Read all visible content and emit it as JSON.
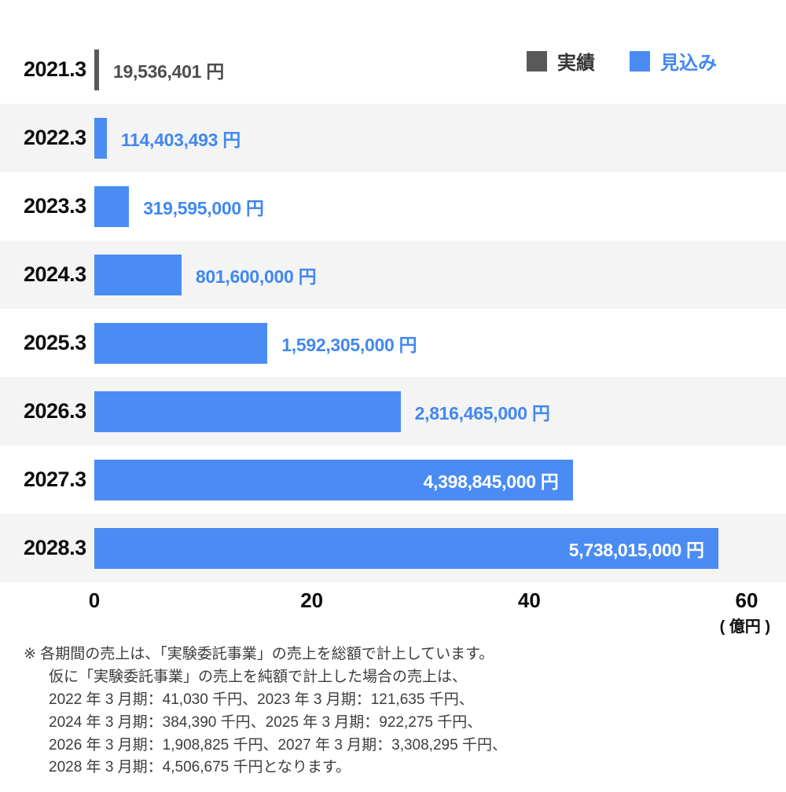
{
  "legend": {
    "items": [
      {
        "label": "実績",
        "color": "#595959",
        "text_color": "#333333"
      },
      {
        "label": "見込み",
        "color": "#4a8cf3",
        "text_color": "#4188f1"
      }
    ]
  },
  "colors": {
    "actual_bar": "#595959",
    "forecast_bar": "#4a8cf3",
    "actual_label_text": "#4d4d4d",
    "forecast_label_text": "#4188f1",
    "inside_label_text": "#ffffff",
    "row_stripe": "#f4f4f4"
  },
  "chart_data": {
    "type": "bar",
    "orientation": "horizontal",
    "title": "",
    "xlabel": "",
    "ylabel": "",
    "xlim": [
      0,
      60
    ],
    "x_ticks": [
      "0",
      "20",
      "40",
      "60"
    ],
    "axis_unit": "( 億円 )",
    "yen_per_axis_unit": 100000000,
    "grid": false,
    "legend_position": "top-right",
    "rows": [
      {
        "year": "2021.3",
        "value_yen": 19536401,
        "label": "19,536,401 円",
        "series": "actual",
        "label_position": "outside"
      },
      {
        "year": "2022.3",
        "value_yen": 114403493,
        "label": "114,403,493 円",
        "series": "forecast",
        "label_position": "outside"
      },
      {
        "year": "2023.3",
        "value_yen": 319595000,
        "label": "319,595,000 円",
        "series": "forecast",
        "label_position": "outside"
      },
      {
        "year": "2024.3",
        "value_yen": 801600000,
        "label": "801,600,000 円",
        "series": "forecast",
        "label_position": "outside"
      },
      {
        "year": "2025.3",
        "value_yen": 1592305000,
        "label": "1,592,305,000 円",
        "series": "forecast",
        "label_position": "outside"
      },
      {
        "year": "2026.3",
        "value_yen": 2816465000,
        "label": "2,816,465,000 円",
        "series": "forecast",
        "label_position": "outside"
      },
      {
        "year": "2027.3",
        "value_yen": 4398845000,
        "label": "4,398,845,000 円",
        "series": "forecast",
        "label_position": "inside"
      },
      {
        "year": "2028.3",
        "value_yen": 5738015000,
        "label": "5,738,015,000 円",
        "series": "forecast",
        "label_position": "inside"
      }
    ]
  },
  "footnote": {
    "lines": [
      "※ 各期間の売上は、「実験委託事業」の売上を総額で計上しています。",
      "仮に「実験委託事業」の売上を純額で計上した場合の売上は、",
      "2022 年 3 月期：41,030 千円、2023 年 3 月期：121,635 千円、",
      "2024 年 3 月期：384,390 千円、2025 年 3 月期：922,275 千円、",
      "2026 年 3 月期：1,908,825 千円、2027 年 3 月期：3,308,295 千円、",
      "2028 年 3 月期：4,506,675 千円となります。"
    ]
  }
}
